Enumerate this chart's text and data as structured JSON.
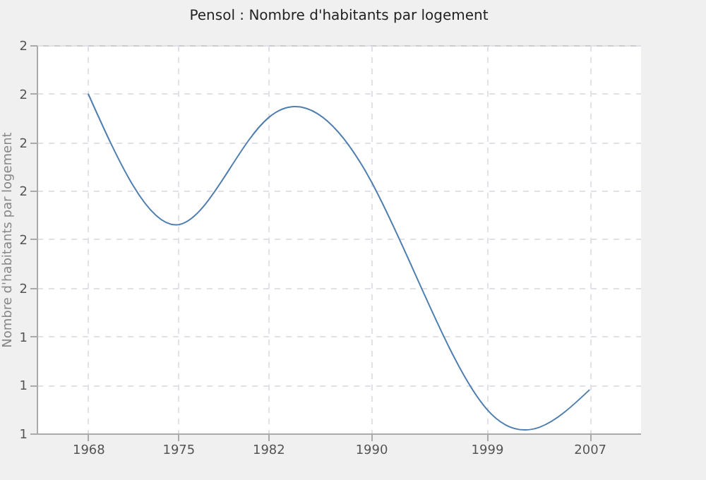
{
  "chart_data": {
    "type": "line",
    "title": "Pensol : Nombre d'habitants par logement",
    "ylabel": "Nombre d'habitants par logement",
    "x": [
      1968,
      1975,
      1982,
      1990,
      1999,
      2007
    ],
    "series": [
      {
        "color": "#4f7fb0",
        "values": [
          1.9,
          1.63,
          1.85,
          1.72,
          1.25,
          1.29
        ]
      }
    ],
    "xlim": [
      1964,
      2011
    ],
    "xticks": [
      1968,
      1975,
      1982,
      1990,
      1999,
      2007
    ],
    "ylim": [
      1.2,
      2.0
    ],
    "yticks": [
      {
        "value": 1.2,
        "label": "1"
      },
      {
        "value": 1.3,
        "label": "1"
      },
      {
        "value": 1.4,
        "label": "1"
      },
      {
        "value": 1.5,
        "label": "2"
      },
      {
        "value": 1.6,
        "label": "2"
      },
      {
        "value": 1.7,
        "label": "2"
      },
      {
        "value": 1.8,
        "label": "2"
      },
      {
        "value": 1.9,
        "label": "2"
      },
      {
        "value": 2.0,
        "label": "2"
      }
    ],
    "grid": true,
    "marker": "none",
    "line_style": "solid"
  }
}
